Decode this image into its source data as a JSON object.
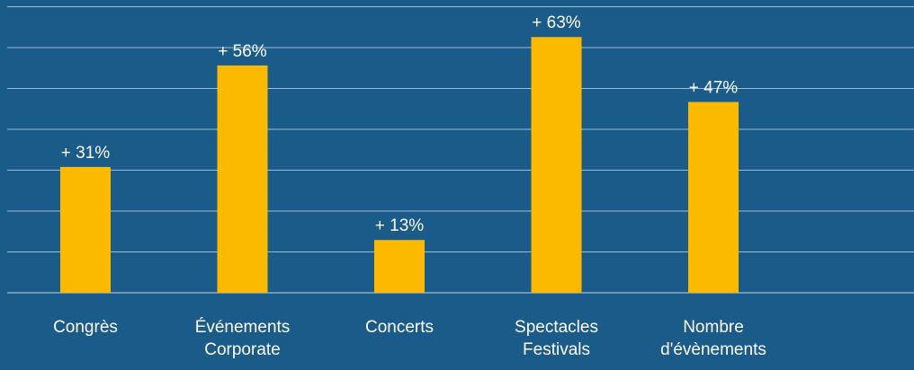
{
  "chart_data": {
    "type": "bar",
    "categories": [
      [
        "Congrès"
      ],
      [
        "Événements",
        "Corporate"
      ],
      [
        "Concerts"
      ],
      [
        "Spectacles",
        "Festivals"
      ],
      [
        "Nombre",
        "d'évènements"
      ]
    ],
    "values": [
      31,
      56,
      13,
      63,
      47
    ],
    "data_labels": [
      "+ 31%",
      "+ 56%",
      "+ 13%",
      "+ 63%",
      "+ 47%"
    ],
    "ylim": [
      0,
      70
    ],
    "grid": true,
    "colors": {
      "background": "#1a5b8a",
      "bar": "#fbb900",
      "gridline": "#9cbcd3",
      "text": "#ffffff"
    }
  }
}
